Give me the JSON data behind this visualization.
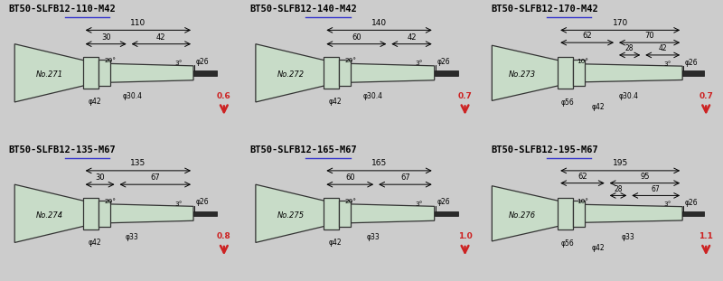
{
  "bg_color": "#cccccc",
  "panel_bg": "#e8efe8",
  "tool_fill": "#c8dcc8",
  "tool_edge": "#333333",
  "text_color": "#000000",
  "title_color": "#000000",
  "underline_color": "#3333cc",
  "arrow_color": "#cc2222",
  "panels": [
    {
      "title_prefix": "BT50-",
      "title_underline": "SLFB",
      "title_suffix": "12-110-M42",
      "number": "No.271",
      "L_total": 110,
      "L1": 30,
      "L2": 42,
      "angle1": "20°",
      "angle2": "3°",
      "phi_tip": "φ26",
      "phi_collar": "φ30.4",
      "phi_flange": "φ42",
      "phi_extra": null,
      "weight": "0.6",
      "type": "short"
    },
    {
      "title_prefix": "BT50-",
      "title_underline": "SLFB",
      "title_suffix": "12-140-M42",
      "number": "No.272",
      "L_total": 140,
      "L1": 60,
      "L2": 42,
      "angle1": "20°",
      "angle2": "3°",
      "phi_tip": "φ26",
      "phi_collar": "φ30.4",
      "phi_flange": "φ42",
      "phi_extra": null,
      "weight": "0.7",
      "type": "short"
    },
    {
      "title_prefix": "BT50-",
      "title_underline": "SLFB",
      "title_suffix": "12-170-M42",
      "number": "No.273",
      "L_total": 170,
      "L1": 62,
      "L2": 70,
      "L3": 28,
      "L4": 42,
      "angle1": "10°",
      "angle2": "3°",
      "phi_tip": "φ26",
      "phi_collar": "φ30.4",
      "phi_flange": "φ42",
      "phi_extra": "φ56",
      "weight": "0.7",
      "type": "long"
    },
    {
      "title_prefix": "BT50-",
      "title_underline": "SLFB",
      "title_suffix": "12-135-M67",
      "number": "No.274",
      "L_total": 135,
      "L1": 30,
      "L2": 67,
      "angle1": "20°",
      "angle2": "3°",
      "phi_tip": "φ26",
      "phi_collar": "φ33",
      "phi_flange": "φ42",
      "phi_extra": null,
      "weight": "0.8",
      "type": "short"
    },
    {
      "title_prefix": "BT50-",
      "title_underline": "SLFB",
      "title_suffix": "12-165-M67",
      "number": "No.275",
      "L_total": 165,
      "L1": 60,
      "L2": 67,
      "angle1": "20°",
      "angle2": "3°",
      "phi_tip": "φ26",
      "phi_collar": "φ33",
      "phi_flange": "φ42",
      "phi_extra": null,
      "weight": "1.0",
      "type": "short"
    },
    {
      "title_prefix": "BT50-",
      "title_underline": "SLFB",
      "title_suffix": "12-195-M67",
      "number": "No.276",
      "L_total": 195,
      "L1": 62,
      "L2": 95,
      "L3": 28,
      "L4": 67,
      "angle1": "10°",
      "angle2": "3°",
      "phi_tip": "φ26",
      "phi_collar": "φ33",
      "phi_flange": "φ42",
      "phi_extra": "φ56",
      "weight": "1.1",
      "type": "long"
    }
  ]
}
